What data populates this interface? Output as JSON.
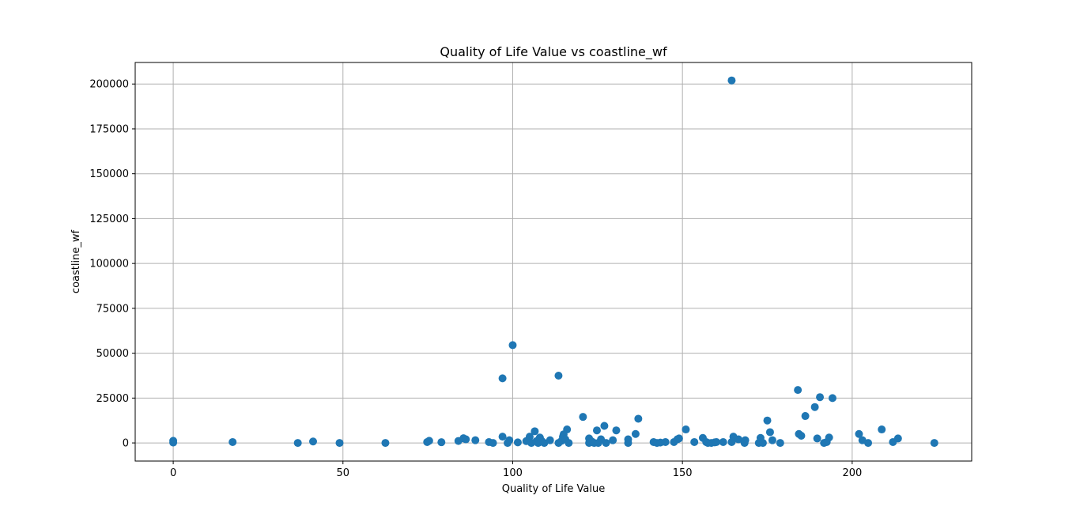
{
  "chart_data": {
    "type": "scatter",
    "title": "Quality of Life Value vs coastline_wf",
    "xlabel": "Quality of Life Value",
    "ylabel": "coastline_wf",
    "xlim": [
      -11.2,
      235.2
    ],
    "ylim": [
      -10100,
      212000
    ],
    "xticks": [
      0,
      50,
      100,
      150,
      200
    ],
    "xtick_labels": [
      "0",
      "50",
      "100",
      "150",
      "200"
    ],
    "yticks": [
      0,
      25000,
      50000,
      75000,
      100000,
      125000,
      150000,
      175000,
      200000
    ],
    "ytick_labels": [
      "0",
      "25000",
      "50000",
      "75000",
      "100000",
      "125000",
      "150000",
      "175000",
      "200000"
    ],
    "grid": true,
    "marker_color": "#1f77b4",
    "points": [
      {
        "x": 0,
        "y": 1200
      },
      {
        "x": 0,
        "y": 200
      },
      {
        "x": 17.5,
        "y": 500
      },
      {
        "x": 36.7,
        "y": 0
      },
      {
        "x": 41.2,
        "y": 800
      },
      {
        "x": 49,
        "y": 0
      },
      {
        "x": 62.5,
        "y": 0
      },
      {
        "x": 74.8,
        "y": 500
      },
      {
        "x": 75.4,
        "y": 1200
      },
      {
        "x": 79,
        "y": 400
      },
      {
        "x": 84,
        "y": 1100
      },
      {
        "x": 85.5,
        "y": 2600
      },
      {
        "x": 86.2,
        "y": 2000
      },
      {
        "x": 89,
        "y": 1500
      },
      {
        "x": 93,
        "y": 500
      },
      {
        "x": 94.2,
        "y": 0
      },
      {
        "x": 97,
        "y": 36000
      },
      {
        "x": 97,
        "y": 3500
      },
      {
        "x": 98.5,
        "y": 0
      },
      {
        "x": 99,
        "y": 1500
      },
      {
        "x": 100,
        "y": 54500
      },
      {
        "x": 101.5,
        "y": 300
      },
      {
        "x": 104,
        "y": 1000
      },
      {
        "x": 105,
        "y": 3500
      },
      {
        "x": 105.5,
        "y": 0
      },
      {
        "x": 106.5,
        "y": 6500
      },
      {
        "x": 107,
        "y": 1000
      },
      {
        "x": 107.5,
        "y": 0
      },
      {
        "x": 108,
        "y": 3000
      },
      {
        "x": 108.5,
        "y": 1200
      },
      {
        "x": 109.3,
        "y": 0
      },
      {
        "x": 111,
        "y": 1500
      },
      {
        "x": 113.5,
        "y": 37500
      },
      {
        "x": 113.5,
        "y": 0
      },
      {
        "x": 114.4,
        "y": 1200
      },
      {
        "x": 114.8,
        "y": 3500
      },
      {
        "x": 115,
        "y": 4800
      },
      {
        "x": 115.5,
        "y": 2000
      },
      {
        "x": 116,
        "y": 7500
      },
      {
        "x": 116.5,
        "y": 0
      },
      {
        "x": 120.7,
        "y": 14500
      },
      {
        "x": 122.5,
        "y": 2500
      },
      {
        "x": 122.5,
        "y": 0
      },
      {
        "x": 123.3,
        "y": 800
      },
      {
        "x": 124,
        "y": 0
      },
      {
        "x": 124.8,
        "y": 7000
      },
      {
        "x": 125.2,
        "y": 0
      },
      {
        "x": 126,
        "y": 2000
      },
      {
        "x": 127,
        "y": 9500
      },
      {
        "x": 127.5,
        "y": 0
      },
      {
        "x": 129.5,
        "y": 1500
      },
      {
        "x": 130.5,
        "y": 7000
      },
      {
        "x": 134,
        "y": 2000
      },
      {
        "x": 134,
        "y": 0
      },
      {
        "x": 136.2,
        "y": 5000
      },
      {
        "x": 137,
        "y": 13500
      },
      {
        "x": 141.5,
        "y": 500
      },
      {
        "x": 142.5,
        "y": 0
      },
      {
        "x": 143.5,
        "y": 200
      },
      {
        "x": 145,
        "y": 500
      },
      {
        "x": 147.5,
        "y": 500
      },
      {
        "x": 148.5,
        "y": 2000
      },
      {
        "x": 149,
        "y": 2500
      },
      {
        "x": 151,
        "y": 7500
      },
      {
        "x": 153.5,
        "y": 500
      },
      {
        "x": 156,
        "y": 2800
      },
      {
        "x": 157,
        "y": 500
      },
      {
        "x": 157.5,
        "y": 0
      },
      {
        "x": 158.5,
        "y": 0
      },
      {
        "x": 159.5,
        "y": 300
      },
      {
        "x": 160,
        "y": 500
      },
      {
        "x": 162,
        "y": 500
      },
      {
        "x": 164.5,
        "y": 202000
      },
      {
        "x": 164.5,
        "y": 500
      },
      {
        "x": 165,
        "y": 3500
      },
      {
        "x": 166.5,
        "y": 2000
      },
      {
        "x": 168.3,
        "y": 0
      },
      {
        "x": 168.5,
        "y": 1500
      },
      {
        "x": 172.5,
        "y": 0
      },
      {
        "x": 173,
        "y": 2800
      },
      {
        "x": 173.7,
        "y": 0
      },
      {
        "x": 175,
        "y": 12500
      },
      {
        "x": 175.8,
        "y": 6000
      },
      {
        "x": 176.5,
        "y": 1500
      },
      {
        "x": 178.8,
        "y": 0
      },
      {
        "x": 184,
        "y": 29500
      },
      {
        "x": 184.3,
        "y": 5000
      },
      {
        "x": 185,
        "y": 4000
      },
      {
        "x": 186.2,
        "y": 15000
      },
      {
        "x": 189,
        "y": 20000
      },
      {
        "x": 189.7,
        "y": 2500
      },
      {
        "x": 190.5,
        "y": 25500
      },
      {
        "x": 191.7,
        "y": 0
      },
      {
        "x": 192.5,
        "y": 500
      },
      {
        "x": 193.2,
        "y": 3000
      },
      {
        "x": 194.2,
        "y": 25000
      },
      {
        "x": 202,
        "y": 5000
      },
      {
        "x": 203,
        "y": 1500
      },
      {
        "x": 204.7,
        "y": 0
      },
      {
        "x": 208.7,
        "y": 7500
      },
      {
        "x": 212,
        "y": 500
      },
      {
        "x": 213.5,
        "y": 2500
      },
      {
        "x": 224.2,
        "y": 0
      }
    ]
  }
}
